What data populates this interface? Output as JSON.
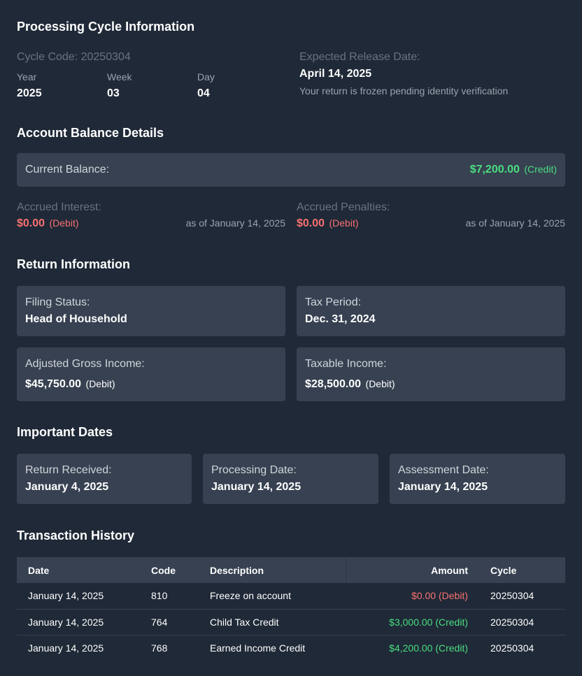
{
  "cycle": {
    "title": "Processing Cycle Information",
    "code_label": "Cycle Code: 20250304",
    "year_label": "Year",
    "year": "2025",
    "week_label": "Week",
    "week": "03",
    "day_label": "Day",
    "day": "04",
    "release_label": "Expected Release Date:",
    "release_date": "April 14, 2025",
    "release_note": "Your return is frozen pending identity verification"
  },
  "balance": {
    "title": "Account Balance Details",
    "current_label": "Current Balance:",
    "current_amount": "$7,200.00",
    "current_tag": "(Credit)",
    "interest_label": "Accrued Interest:",
    "interest_amount": "$0.00",
    "interest_tag": "(Debit)",
    "interest_asof": "as of January 14, 2025",
    "penalties_label": "Accrued Penalties:",
    "penalties_amount": "$0.00",
    "penalties_tag": "(Debit)",
    "penalties_asof": "as of January 14, 2025"
  },
  "return_info": {
    "title": "Return Information",
    "filing_status_label": "Filing Status:",
    "filing_status": "Head of Household",
    "tax_period_label": "Tax Period:",
    "tax_period": "Dec. 31, 2024",
    "agi_label": "Adjusted Gross Income:",
    "agi_amount": "$45,750.00",
    "agi_tag": "(Debit)",
    "taxable_label": "Taxable Income:",
    "taxable_amount": "$28,500.00",
    "taxable_tag": "(Debit)"
  },
  "dates": {
    "title": "Important Dates",
    "received_label": "Return Received:",
    "received": "January 4, 2025",
    "processing_label": "Processing Date:",
    "processing": "January 14, 2025",
    "assessment_label": "Assessment Date:",
    "assessment": "January 14, 2025"
  },
  "transactions": {
    "title": "Transaction History",
    "headers": {
      "date": "Date",
      "code": "Code",
      "description": "Description",
      "amount": "Amount",
      "cycle": "Cycle"
    },
    "rows": [
      {
        "date": "January 14, 2025",
        "code": "810",
        "description": "Freeze on account",
        "amount": "$0.00 (Debit)",
        "cycle": "20250304"
      },
      {
        "date": "January 14, 2025",
        "code": "764",
        "description": "Child Tax Credit",
        "amount": "$3,000.00 (Credit)",
        "cycle": "20250304"
      },
      {
        "date": "January 14, 2025",
        "code": "768",
        "description": "Earned Income Credit",
        "amount": "$4,200.00 (Credit)",
        "cycle": "20250304"
      }
    ]
  },
  "colors": {
    "background": "#1f2937",
    "card": "#374151",
    "credit": "#4ade80",
    "debit": "#f87171"
  }
}
